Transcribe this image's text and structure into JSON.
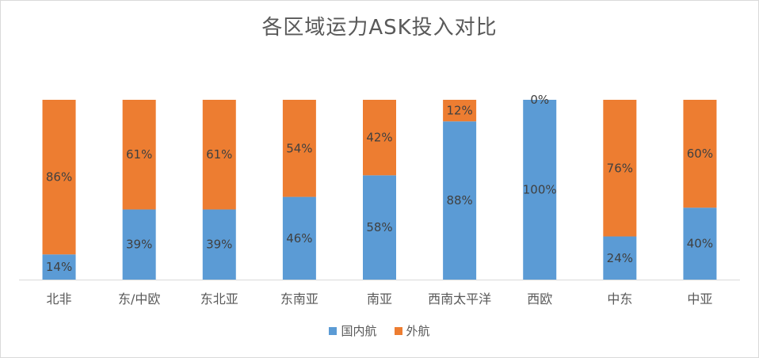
{
  "chart_data": {
    "type": "bar",
    "stacked": true,
    "percent_stacked": true,
    "title": "各区域运力ASK投入对比",
    "categories": [
      "北非",
      "东/中欧",
      "东北亚",
      "东南亚",
      "南亚",
      "西南太平洋",
      "西欧",
      "中东",
      "中亚"
    ],
    "series": [
      {
        "name": "国内航",
        "color": "#5b9bd5",
        "values": [
          14,
          39,
          39,
          46,
          58,
          88,
          100,
          24,
          40
        ],
        "labels": [
          "14%",
          "39%",
          "39%",
          "46%",
          "58%",
          "88%",
          "100%",
          "24%",
          "40%"
        ]
      },
      {
        "name": "外航",
        "color": "#ed7d31",
        "values": [
          86,
          61,
          61,
          54,
          42,
          12,
          0,
          76,
          60
        ],
        "labels": [
          "86%",
          "61%",
          "61%",
          "54%",
          "42%",
          "12%",
          "0%",
          "76%",
          "60%"
        ]
      }
    ],
    "ylim": [
      0,
      100
    ],
    "grid": false,
    "legend": "bottom"
  }
}
